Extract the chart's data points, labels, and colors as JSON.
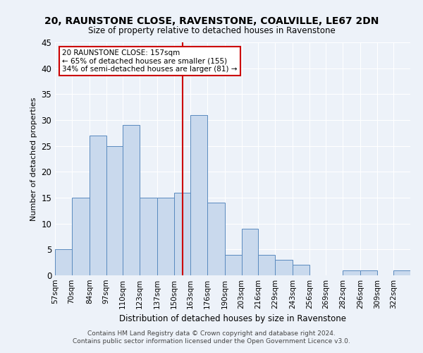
{
  "title": "20, RAUNSTONE CLOSE, RAVENSTONE, COALVILLE, LE67 2DN",
  "subtitle": "Size of property relative to detached houses in Ravenstone",
  "xlabel": "Distribution of detached houses by size in Ravenstone",
  "ylabel": "Number of detached properties",
  "bar_color": "#c9d9ed",
  "bar_edge_color": "#5a8abf",
  "vline_x": 157,
  "vline_color": "#cc0000",
  "categories": [
    "57sqm",
    "70sqm",
    "84sqm",
    "97sqm",
    "110sqm",
    "123sqm",
    "137sqm",
    "150sqm",
    "163sqm",
    "176sqm",
    "190sqm",
    "203sqm",
    "216sqm",
    "229sqm",
    "243sqm",
    "256sqm",
    "269sqm",
    "282sqm",
    "296sqm",
    "309sqm",
    "322sqm"
  ],
  "bin_edges": [
    57,
    70,
    84,
    97,
    110,
    123,
    137,
    150,
    163,
    176,
    190,
    203,
    216,
    229,
    243,
    256,
    269,
    282,
    296,
    309,
    322,
    335
  ],
  "bar_heights": [
    5,
    15,
    27,
    25,
    29,
    15,
    15,
    16,
    31,
    14,
    4,
    9,
    4,
    3,
    2,
    0,
    0,
    1,
    1,
    0,
    1
  ],
  "ylim": [
    0,
    45
  ],
  "yticks": [
    0,
    5,
    10,
    15,
    20,
    25,
    30,
    35,
    40,
    45
  ],
  "annotation_title": "20 RAUNSTONE CLOSE: 157sqm",
  "annotation_line1": "← 65% of detached houses are smaller (155)",
  "annotation_line2": "34% of semi-detached houses are larger (81) →",
  "annotation_box_color": "#ffffff",
  "annotation_box_edge": "#cc0000",
  "footer1": "Contains HM Land Registry data © Crown copyright and database right 2024.",
  "footer2": "Contains public sector information licensed under the Open Government Licence v3.0.",
  "background_color": "#edf2f9",
  "grid_color": "#ffffff",
  "title_fontsize": 10,
  "subtitle_fontsize": 9
}
